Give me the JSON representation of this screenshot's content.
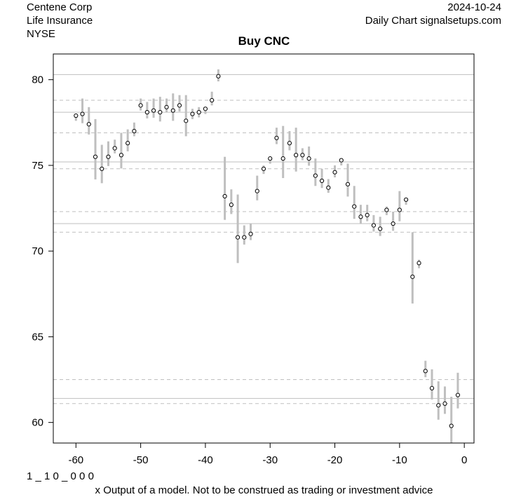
{
  "header": {
    "company": "Centene Corp",
    "industry": "Life Insurance",
    "exchange": "NYSE",
    "date": "2024-10-24",
    "source": "Daily Chart signalsetups.com"
  },
  "footer": {
    "code": "1 _ 1 0 _ 0 0 0",
    "disclaimer": "x Output of a model. Not to be construed as trading or investment advice"
  },
  "chart_data": {
    "type": "line",
    "title": "Buy CNC",
    "xlabel": "",
    "ylabel": "",
    "xlim": [
      -63.5,
      1.5
    ],
    "ylim": [
      58.8,
      81.5
    ],
    "x_ticks": [
      -60,
      -50,
      -40,
      -30,
      -20,
      -10,
      0
    ],
    "y_ticks": [
      60,
      65,
      70,
      75,
      80
    ],
    "grid": false,
    "colors": {
      "range_bar": "#bfbfbf",
      "solid_level": "#bfbfbf",
      "dashed_level": "#bfbfbf",
      "point_fill": "#ffffff",
      "point_stroke": "#000000"
    },
    "solid_levels": [
      80.3,
      78.1,
      75.2,
      71.6,
      61.4
    ],
    "dashed_levels": [
      78.8,
      76.9,
      74.8,
      72.3,
      71.1,
      62.5,
      61.1
    ],
    "series": [
      {
        "x": [
          -60,
          -59,
          -58,
          -57,
          -56,
          -55,
          -54,
          -53,
          -52,
          -51,
          -50,
          -49,
          -48,
          -47,
          -46,
          -45,
          -44,
          -43,
          -42,
          -41,
          -40,
          -39,
          -38,
          -37,
          -36,
          -35,
          -34,
          -33,
          -32,
          -31,
          -30,
          -29,
          -28,
          -27,
          -26,
          -25,
          -24,
          -23,
          -22,
          -21,
          -20,
          -19,
          -18,
          -17,
          -16,
          -15,
          -14,
          -13,
          -12,
          -11,
          -10,
          -9,
          -8,
          -7,
          -6,
          -5,
          -4,
          -3,
          -2,
          -1
        ],
        "close": [
          77.9,
          78.0,
          77.4,
          75.5,
          74.8,
          75.5,
          76.0,
          75.6,
          76.3,
          77.0,
          78.5,
          78.1,
          78.2,
          78.1,
          78.4,
          78.2,
          78.5,
          77.6,
          78.0,
          78.1,
          78.3,
          78.8,
          80.2,
          73.2,
          72.7,
          70.8,
          70.8,
          71.0,
          73.5,
          74.8,
          75.4,
          76.6,
          75.4,
          76.3,
          75.6,
          75.6,
          75.4,
          74.4,
          74.1,
          73.7,
          74.6,
          75.3,
          73.9,
          72.6,
          72.0,
          72.1,
          71.5,
          71.3,
          72.4,
          71.6,
          72.4,
          73.0,
          68.5,
          69.3,
          63.0,
          62.0,
          61.0,
          61.1,
          59.8,
          61.6
        ],
        "high": [
          78.0,
          78.9,
          78.4,
          77.7,
          76.2,
          76.4,
          76.5,
          76.9,
          77.1,
          77.5,
          78.9,
          78.7,
          78.9,
          79.0,
          78.9,
          79.2,
          79.1,
          79.1,
          78.3,
          78.4,
          78.4,
          79.3,
          80.6,
          75.5,
          73.6,
          73.3,
          71.5,
          71.6,
          74.4,
          75.0,
          75.5,
          77.2,
          77.3,
          77.0,
          77.2,
          76.0,
          76.1,
          75.4,
          74.8,
          74.2,
          75.0,
          75.4,
          75.1,
          73.8,
          72.7,
          72.7,
          72.1,
          72.0,
          72.6,
          72.3,
          73.5,
          73.1,
          71.1,
          69.5,
          63.6,
          63.1,
          62.4,
          62.1,
          61.5,
          62.9
        ]
      }
    ]
  }
}
